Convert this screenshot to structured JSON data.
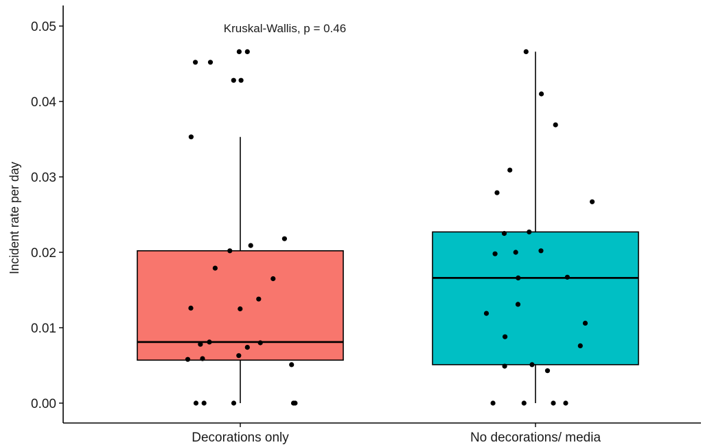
{
  "chart_data": {
    "type": "boxplot",
    "title": "",
    "xlabel": "",
    "ylabel": "Incident rate per day",
    "ylim": [
      0,
      0.05
    ],
    "yticks": [
      0,
      0.01,
      0.02,
      0.03,
      0.04,
      0.05
    ],
    "ytick_labels": [
      "0.00",
      "0.01",
      "0.02",
      "0.03",
      "0.04",
      "0.05"
    ],
    "categories": [
      "Decorations only",
      "No decorations/ media"
    ],
    "annotation": "Kruskal-Wallis, p = 0.46",
    "grid": false,
    "legend": "none",
    "groups": [
      {
        "category": "Decorations only",
        "color": "#F8766D",
        "box": {
          "whisker_low": 0,
          "q1": 0.0057,
          "median": 0.0081,
          "q3": 0.0202,
          "whisker_high": 0.0353
        },
        "points": [
          0.0466,
          0.0466,
          0.0452,
          0.0452,
          0.0428,
          0.0428,
          0.0353,
          0.0218,
          0.0209,
          0.0202,
          0.0179,
          0.0165,
          0.0138,
          0.0126,
          0.0125,
          0.0081,
          0.008,
          0.0078,
          0.0074,
          0.0063,
          0.0059,
          0.0058,
          0.0051,
          0,
          0,
          0,
          0,
          0
        ]
      },
      {
        "category": "No decorations/ media",
        "color": "#00BFC4",
        "box": {
          "whisker_low": 0,
          "q1": 0.0051,
          "median": 0.0166,
          "q3": 0.0227,
          "whisker_high": 0.0466
        },
        "points": [
          0.0466,
          0.041,
          0.0369,
          0.0309,
          0.0279,
          0.0267,
          0.0227,
          0.0225,
          0.0202,
          0.02,
          0.0198,
          0.0167,
          0.0166,
          0.0131,
          0.0119,
          0.0106,
          0.0088,
          0.0076,
          0.0051,
          0.0049,
          0.0043,
          0,
          0,
          0,
          0
        ]
      }
    ]
  }
}
